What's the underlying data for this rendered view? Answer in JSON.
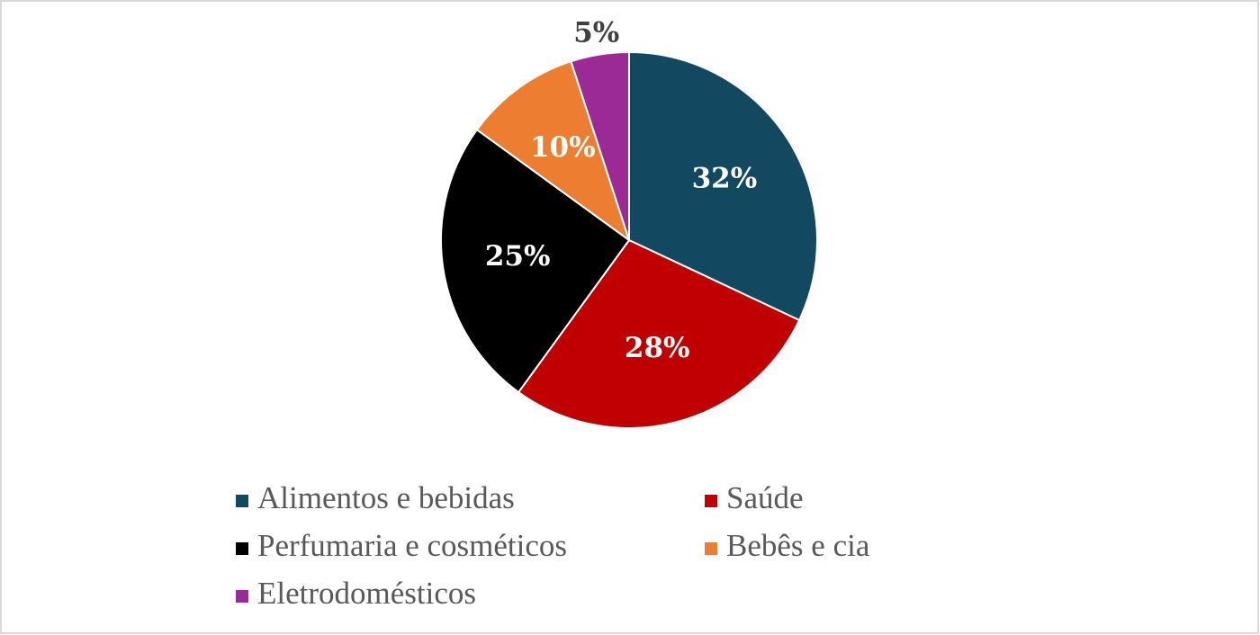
{
  "chart_data": {
    "type": "pie",
    "categories": [
      "Alimentos e bebidas",
      "Saúde",
      "Perfumaria e cosméticos",
      "Bebês e cia",
      "Eletrodomésticos"
    ],
    "values": [
      32,
      28,
      25,
      10,
      5
    ],
    "value_labels": [
      "32%",
      "28%",
      "25%",
      "10%",
      "5%"
    ],
    "colors": [
      "#134960",
      "#c00000",
      "#000000",
      "#ed7d31",
      "#9c2a96"
    ]
  }
}
